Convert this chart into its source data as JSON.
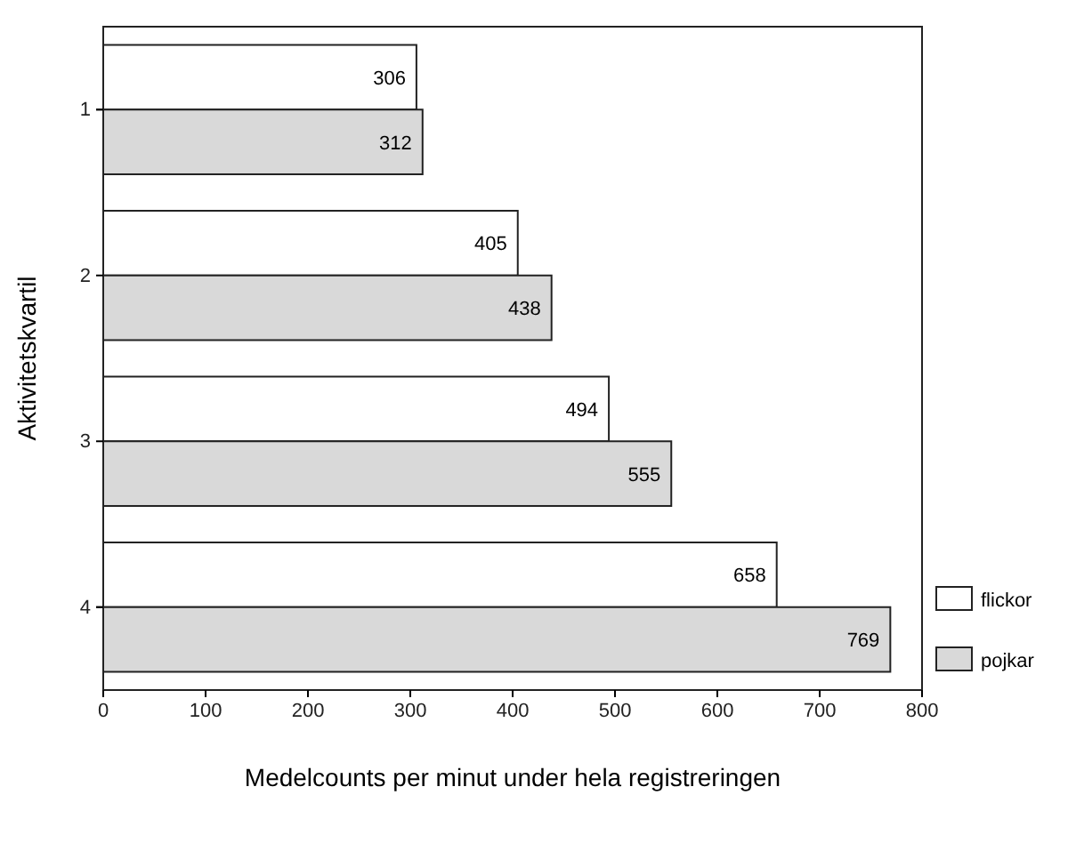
{
  "chart_data": {
    "type": "bar",
    "orientation": "horizontal",
    "xlabel": "Medelcounts per minut under hela registreringen",
    "ylabel": "Aktivitetskvartil",
    "categories": [
      "1",
      "2",
      "3",
      "4"
    ],
    "series": [
      {
        "name": "flickor",
        "color": "#ffffff",
        "values": [
          306,
          405,
          494,
          658
        ]
      },
      {
        "name": "pojkar",
        "color": "#d9d9d9",
        "values": [
          312,
          438,
          555,
          769
        ]
      }
    ],
    "xlim": [
      0,
      800
    ],
    "xticks": [
      0,
      100,
      200,
      300,
      400,
      500,
      600,
      700,
      800
    ],
    "data_labels": true,
    "legend": "bottom right",
    "grid": false
  }
}
